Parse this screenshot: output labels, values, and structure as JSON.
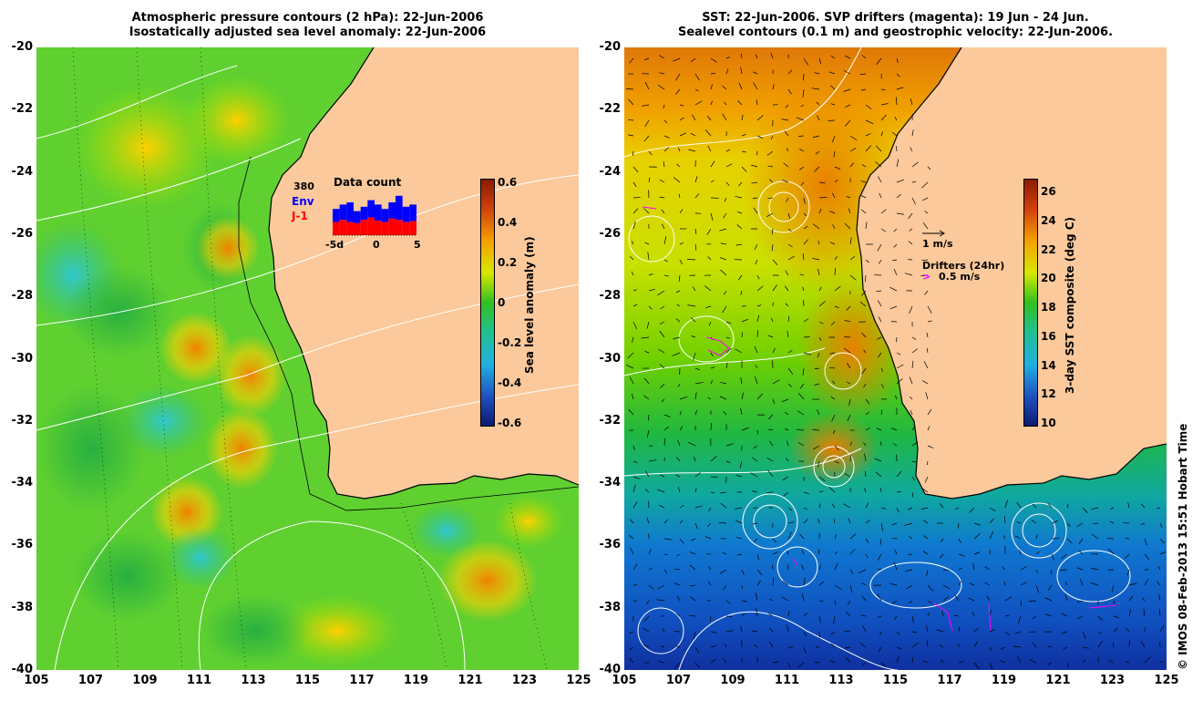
{
  "left_panel": {
    "title_line1": "Atmospheric pressure contours (2 hPa): 22-Jun-2006",
    "title_line2": "Isostatically adjusted sea level anomaly: 22-Jun-2006",
    "colorbar_label": "Sea level anomaly (m)",
    "colorbar_ticks": [
      "0.6",
      "0.4",
      "0.2",
      "0",
      "-0.2",
      "-0.4",
      "-0.6"
    ],
    "inset": {
      "count_label": "380",
      "env_label": "Env",
      "ji_label": "J-1",
      "title": "Data count",
      "x_ticks": [
        "-5d",
        "0",
        "5"
      ],
      "env_color": "#0000ff",
      "ji_color": "#ff0000",
      "env_fraction": [
        0.6,
        0.7,
        0.75,
        0.55,
        0.65,
        0.8,
        0.7,
        0.6,
        0.75,
        0.9,
        0.65,
        0.7
      ],
      "ji_fraction": [
        0.3,
        0.35,
        0.3,
        0.28,
        0.35,
        0.4,
        0.33,
        0.3,
        0.38,
        0.35,
        0.3,
        0.32
      ]
    }
  },
  "right_panel": {
    "title_line1": "SST: 22-Jun-2006. SVP drifters (magenta): 19 Jun - 24 Jun.",
    "title_line2": "Sealevel contours (0.1 m) and geostrophic velocity: 22-Jun-2006.",
    "colorbar_label": "3-day SST composite (deg C)",
    "colorbar_ticks": [
      "26",
      "24",
      "22",
      "20",
      "18",
      "16",
      "14",
      "12",
      "10"
    ],
    "scale_label": "1 m/s",
    "drifter_title": "Drifters (24hr)",
    "drifter_scale": "0.5 m/s",
    "drifter_glyph": ">",
    "drifter_color": "#ff00ff"
  },
  "axes": {
    "y_ticks": [
      "-20",
      "-22",
      "-24",
      "-26",
      "-28",
      "-30",
      "-32",
      "-34",
      "-36",
      "-38",
      "-40"
    ],
    "x_ticks": [
      "105",
      "107",
      "109",
      "111",
      "113",
      "115",
      "117",
      "119",
      "121",
      "123",
      "125"
    ],
    "lon_range": [
      105,
      125
    ],
    "lat_range": [
      -40,
      -20
    ]
  },
  "colors": {
    "land": "#fbc99b",
    "coast": "#000000",
    "contour": "#ffffff"
  },
  "copyright": "© IMOS 08-Feb-2013 15:51 Hobart Time"
}
